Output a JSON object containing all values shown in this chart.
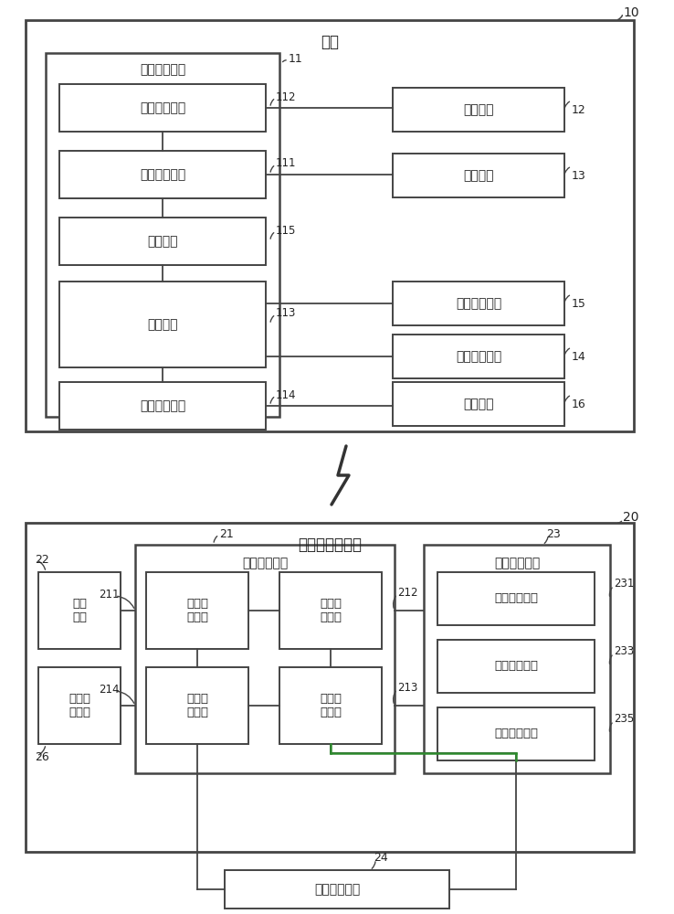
{
  "bg_color": "#ffffff",
  "line_color": "#444444",
  "font_color": "#222222",
  "sec1_title": "门禁",
  "top_label": "10",
  "ctrl1_title": "第一控制模组",
  "ctrl1_label": "11",
  "box1_text": "第一稳流模块",
  "box1_label": "112",
  "box1_right_text": "电源单元",
  "box1_right_label": "12",
  "box2_text": "电流发送模块",
  "box2_label": "111",
  "box2_right_text": "发射线圈",
  "box2_right_label": "13",
  "box3_text": "解锁模块",
  "box3_label": "115",
  "box4_text": "验证模块",
  "box4_label": "113",
  "box4_r1_text": "无线接收单元",
  "box4_r1_label": "15",
  "box4_r2_text": "第一存储单元",
  "box4_r2_label": "14",
  "box5_text": "发光控制模块",
  "box5_label": "114",
  "box5_right_text": "发光单元",
  "box5_right_label": "16",
  "sec2_title": "免电源智能鑰匙",
  "sec2_label": "20",
  "ctrl2_title": "第二控制模组",
  "ctrl2_label": "21",
  "lb1_text": "接收\n线圈",
  "lb1_label": "22",
  "lb1_conn": "211",
  "lb2_text": "无线发\n射单元",
  "lb2_label": "26",
  "lb2_conn": "214",
  "c2b1_text": "电流接\n收模块",
  "c2b2_text": "第二稳\n流模块",
  "c2b2_label": "212",
  "c2b3_text": "信息发\n送模块",
  "c2b4_text": "电流转\n换模块",
  "c2b4_label": "213",
  "fp_title": "指纹识别模组",
  "fp_label": "23",
  "fp1_text": "指纹采集模块",
  "fp1_label": "231",
  "fp2_text": "信息转换模块",
  "fp2_label": "233",
  "fp3_text": "信息传输模块",
  "fp3_label": "235",
  "st2_text": "第二存储单元",
  "st2_label": "24"
}
